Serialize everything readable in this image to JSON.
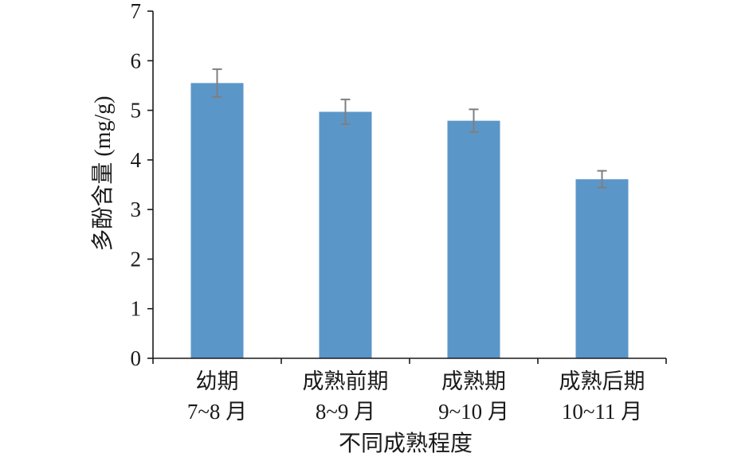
{
  "chart_data": {
    "type": "bar",
    "categories": [
      [
        "幼期",
        "7~8 月"
      ],
      [
        "成熟前期",
        "8~9 月"
      ],
      [
        "成熟期",
        "9~10 月"
      ],
      [
        "成熟后期",
        "10~11 月"
      ]
    ],
    "values": [
      5.55,
      4.97,
      4.79,
      3.61
    ],
    "error": [
      0.28,
      0.25,
      0.23,
      0.17
    ],
    "xlabel": "不同成熟程度",
    "ylabel": "多酚含量 (mg/g)",
    "ylim": [
      0,
      7
    ],
    "yticks": [
      "0",
      "1",
      "2",
      "3",
      "4",
      "5",
      "6",
      "7"
    ],
    "grid": false,
    "colors": {
      "bar": "#5b96c8",
      "error_bar": "#7f7f7f",
      "axis": "#1a1a1a"
    }
  }
}
